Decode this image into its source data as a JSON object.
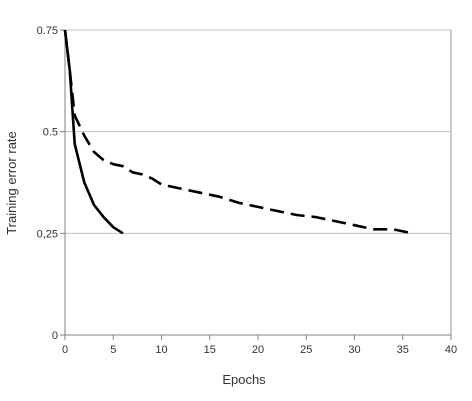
{
  "chart_data": {
    "type": "line",
    "title": "",
    "xlabel": "Epochs",
    "ylabel": "Training error rate",
    "xlim": [
      0,
      40
    ],
    "ylim": [
      0,
      0.75
    ],
    "x_ticks": [
      0,
      5,
      10,
      15,
      20,
      25,
      30,
      35,
      40
    ],
    "x_tick_labels": [
      "0",
      "5",
      "10",
      "15",
      "20",
      "25",
      "30",
      "35",
      "40"
    ],
    "y_ticks": [
      0,
      0.25,
      0.5,
      0.75
    ],
    "y_tick_labels": [
      "0",
      "0,25",
      "0.5",
      "0.75"
    ],
    "grid": "horizontal",
    "legend": "none",
    "colors": {
      "line": "#000000",
      "grid": "#c0c0c0",
      "axis": "#808080"
    },
    "series": [
      {
        "style": "solid",
        "x": [
          0,
          0.5,
          1,
          2,
          3,
          4,
          5,
          6
        ],
        "y": [
          0.75,
          0.65,
          0.47,
          0.375,
          0.32,
          0.29,
          0.265,
          0.25
        ]
      },
      {
        "style": "dashed",
        "x": [
          0,
          0.5,
          1,
          2,
          3,
          4,
          5,
          6,
          7,
          8,
          9,
          10,
          12,
          14,
          16,
          18,
          20,
          22,
          24,
          26,
          28,
          30,
          32,
          34,
          36
        ],
        "y": [
          0.75,
          0.65,
          0.54,
          0.49,
          0.45,
          0.43,
          0.42,
          0.415,
          0.4,
          0.395,
          0.385,
          0.37,
          0.36,
          0.35,
          0.34,
          0.325,
          0.315,
          0.305,
          0.295,
          0.29,
          0.28,
          0.27,
          0.26,
          0.26,
          0.25
        ]
      }
    ]
  }
}
